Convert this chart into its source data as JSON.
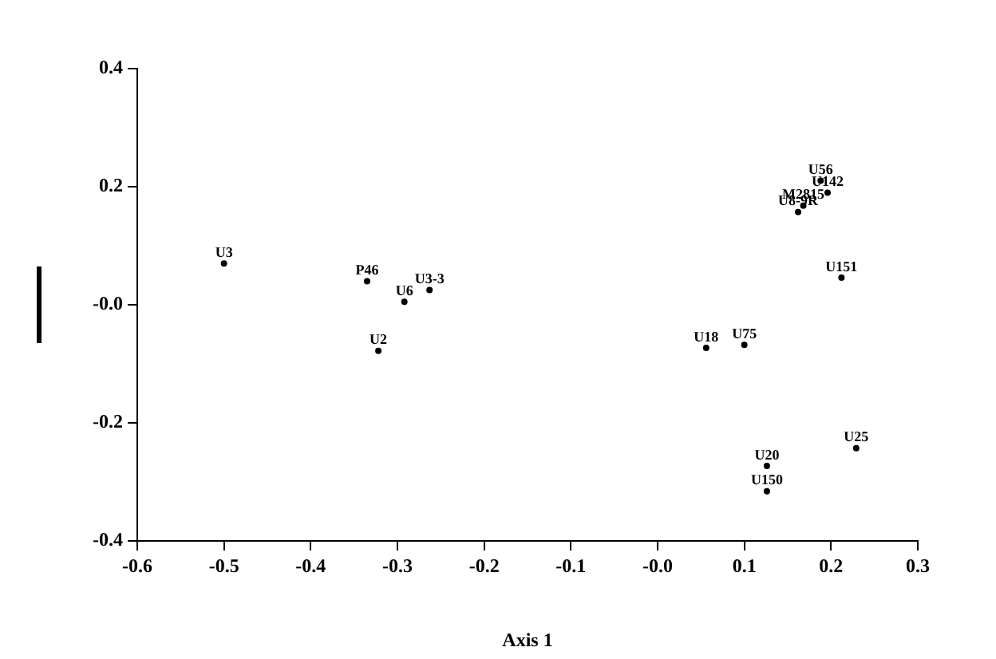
{
  "chart_data": {
    "type": "scatter",
    "xlabel": "Axis 1",
    "marker": "circle",
    "grid": false,
    "legend": false,
    "xlim": [
      -0.6,
      0.3
    ],
    "xticks": [
      -0.6,
      -0.5,
      -0.4,
      -0.3,
      -0.2,
      -0.1,
      {
        "value": 0,
        "label": "-0.0"
      },
      0.1,
      0.2,
      0.3
    ],
    "ylim": [
      -0.4,
      0.4
    ],
    "yticks": [
      -0.4,
      -0.2,
      {
        "value": 0,
        "label": "-0.0"
      },
      0.2,
      0.4
    ],
    "series": [
      {
        "color": "#000000",
        "x": [
          -0.5,
          -0.335,
          -0.292,
          -0.263,
          -0.322,
          0.056,
          0.1,
          0.188,
          0.196,
          0.168,
          0.162,
          0.212,
          0.126,
          0.126,
          0.229
        ],
        "values": [
          0.07,
          0.04,
          0.005,
          0.025,
          -0.078,
          -0.073,
          -0.068,
          0.21,
          0.19,
          0.168,
          0.157,
          0.046,
          -0.273,
          -0.316,
          -0.243
        ],
        "value_labels": [
          "U3",
          "P46",
          "U6",
          "U3-3",
          "U2",
          "U18",
          "U75",
          "U56",
          "U142",
          "M2815",
          "U8-9R",
          "U151",
          "U20",
          "U150",
          "U25"
        ]
      }
    ]
  }
}
